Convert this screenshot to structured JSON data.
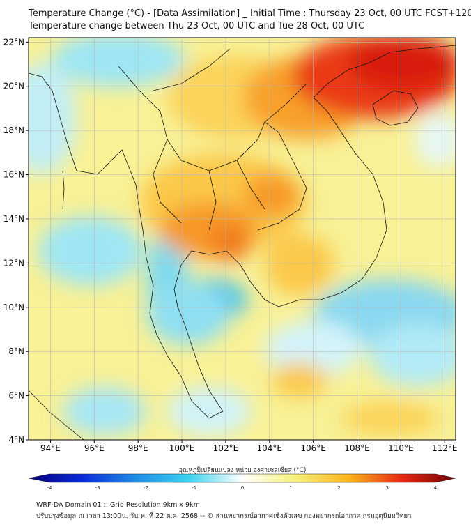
{
  "title": {
    "line1": "Temperature Change (°C) - [Data Assimilation] _ Initial Time : Thursday 23 Oct, 00 UTC FCST+120",
    "line2": "Temperature change between Thu 23 Oct, 00 UTC and Tue 28 Oct, 00 UTC"
  },
  "map": {
    "lon_range": [
      93,
      112.5
    ],
    "lat_range": [
      4,
      22.2
    ],
    "lon_ticks": [
      "94°E",
      "96°E",
      "98°E",
      "100°E",
      "102°E",
      "104°E",
      "106°E",
      "108°E",
      "110°E",
      "112°E"
    ],
    "lon_tick_values": [
      94,
      96,
      98,
      100,
      102,
      104,
      106,
      108,
      110,
      112
    ],
    "lat_ticks": [
      "4°N",
      "6°N",
      "8°N",
      "10°N",
      "12°N",
      "14°N",
      "16°N",
      "18°N",
      "20°N",
      "22°N"
    ],
    "lat_tick_values": [
      4,
      6,
      8,
      10,
      12,
      14,
      16,
      18,
      20,
      22
    ],
    "grid": true
  },
  "colorbar": {
    "label": "อุณหภูมิเปลี่ยนแปลง หน่วย องศาเซลเซียส (°C)",
    "min": -4,
    "max": 4,
    "ticks": [
      "-4",
      "-3",
      "-2",
      "-1",
      "0",
      "1",
      "2",
      "3",
      "4"
    ],
    "colors": {
      "minus4": "#05007a",
      "minus3": "#0a2ad6",
      "minus2": "#1e8ce6",
      "minus1": "#3cd2f0",
      "zero": "#ffffff",
      "plus1": "#f5f07a",
      "plus2": "#fab41e",
      "plus3": "#e62814",
      "plus4": "#6e0000"
    }
  },
  "footer": {
    "line1": "WRF-DA Domain 01 :: Grid Resolution 9km x 9km",
    "line2": "ปรับปรุงข้อมูล ณ เวลา 13:00น. วัน พ. ที่ 22 ต.ค. 2568 -- © ส่วนพยากรณ์อากาศเชิงตัวเลข กองพยากรณ์อากาศ กรมอุตุนิยมวิทยา"
  }
}
